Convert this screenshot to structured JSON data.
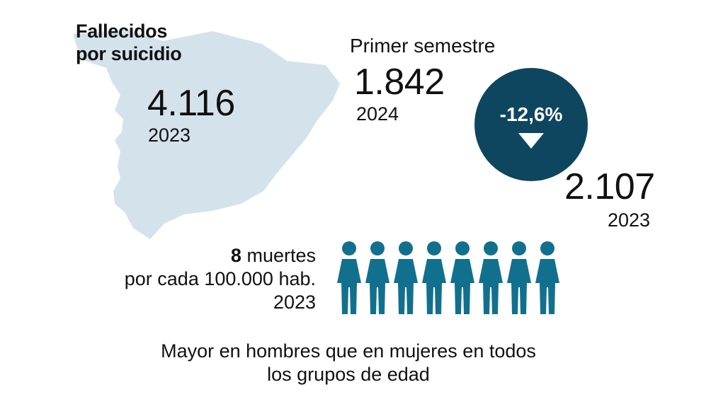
{
  "title": {
    "line1": "Fallecidos",
    "line2": "por suicidio"
  },
  "total": {
    "value": "4.116",
    "year": "2023"
  },
  "semester": {
    "label": "Primer semestre",
    "current": {
      "value": "1.842",
      "year": "2024"
    },
    "previous": {
      "value": "2.107",
      "year": "2023"
    },
    "change": "-12,6%"
  },
  "rate": {
    "number": "8",
    "unit": "muertes",
    "per": "por cada 100.000 hab.",
    "year": "2023",
    "icon_count": 8
  },
  "footnote": {
    "line1": "Mayor en hombres que en mujeres en todos",
    "line2": "los grupos de edad"
  },
  "icons": {
    "map": "spain-map-icon",
    "arrow": "down-arrow-icon",
    "person": "person-icon"
  },
  "colors": {
    "map": "#d4e2ec",
    "badge": "#0e4660",
    "people": "#12708f",
    "text": "#111111"
  }
}
